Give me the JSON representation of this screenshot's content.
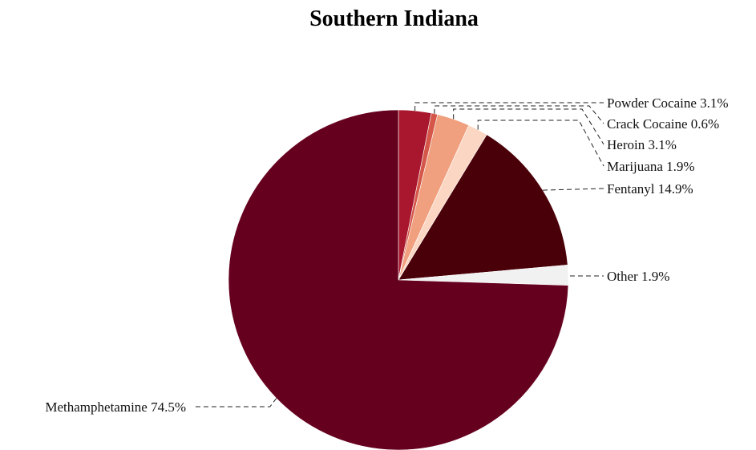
{
  "chart_data": {
    "type": "pie",
    "title": "Southern Indiana",
    "slices": [
      {
        "name": "Powder Cocaine",
        "value": 3.1,
        "label": "Powder Cocaine 3.1%",
        "color": "#a8172e"
      },
      {
        "name": "Crack Cocaine",
        "value": 0.6,
        "label": "Crack Cocaine 0.6%",
        "color": "#d4574a"
      },
      {
        "name": "Heroin",
        "value": 3.1,
        "label": "Heroin 3.1%",
        "color": "#f0a07e"
      },
      {
        "name": "Marijuana",
        "value": 1.9,
        "label": "Marijuana 1.9%",
        "color": "#fbd6c2"
      },
      {
        "name": "Fentanyl",
        "value": 14.9,
        "label": "Fentanyl 14.9%",
        "color": "#4a0008"
      },
      {
        "name": "Other",
        "value": 1.9,
        "label": "Other 1.9%",
        "color": "#f1f1f1"
      },
      {
        "name": "Methamphetamine",
        "value": 74.5,
        "label": "Methamphetamine 74.5%",
        "color": "#66001f"
      }
    ],
    "start_angle": "12 o'clock",
    "direction": "clockwise",
    "legend": "none (leader-line labels)"
  }
}
